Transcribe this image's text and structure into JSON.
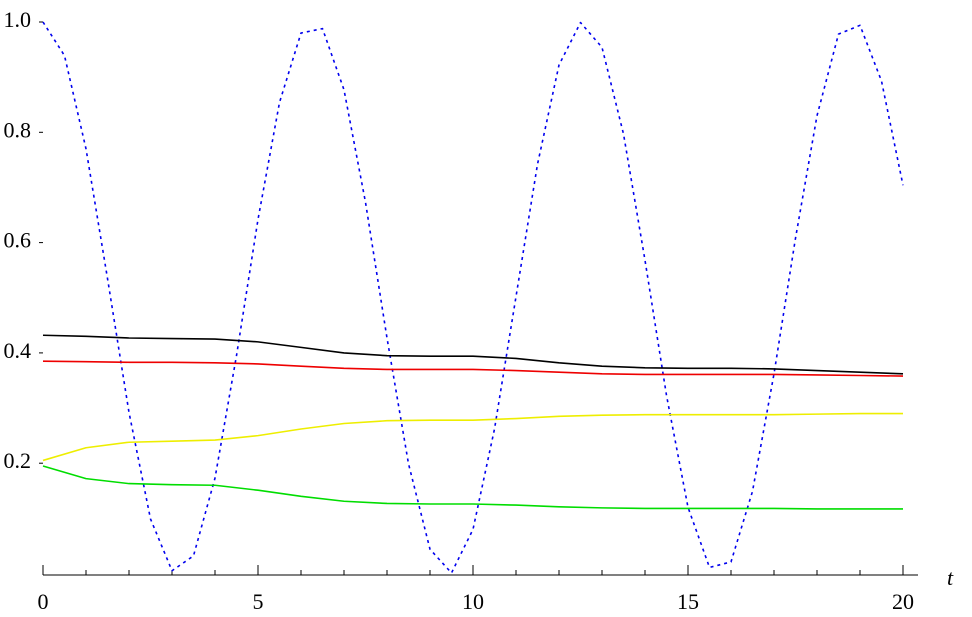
{
  "chart_data": {
    "type": "line",
    "xlabel": "t",
    "xlim": [
      0,
      20
    ],
    "xticks": [
      0,
      5,
      10,
      15,
      20
    ],
    "xminorticks": [
      0,
      1,
      2,
      3,
      4,
      5,
      6,
      7,
      8,
      9,
      10,
      11,
      12,
      13,
      14,
      15,
      16,
      17,
      18,
      19,
      20
    ],
    "ylim": [
      0,
      1
    ],
    "yticks": [
      0.2,
      0.4,
      0.6,
      0.8,
      {
        "value": 1,
        "label": "1.0"
      }
    ],
    "series": [
      {
        "color": "#0000ee",
        "style": "dotted",
        "x": [
          0,
          0.5,
          1,
          1.5,
          2,
          2.5,
          3,
          3.5,
          4,
          4.5,
          5,
          5.5,
          6,
          6.5,
          7,
          7.5,
          8,
          8.5,
          9,
          9.5,
          10,
          10.5,
          11,
          11.5,
          12,
          12.5,
          13,
          13.5,
          14,
          14.5,
          15,
          15.5,
          16,
          16.5,
          17,
          17.5,
          18,
          18.5,
          19,
          19.5,
          20
        ],
        "values": [
          1,
          0.939,
          0.77,
          0.535,
          0.292,
          0.099,
          0.005,
          0.032,
          0.173,
          0.395,
          0.642,
          0.854,
          0.98,
          0.988,
          0.877,
          0.673,
          0.427,
          0.199,
          0.044,
          0.001,
          0.08,
          0.262,
          0.502,
          0.742,
          0.922,
          0.999,
          0.954,
          0.797,
          0.568,
          0.323,
          0.12,
          0.011,
          0.021,
          0.149,
          0.362,
          0.608,
          0.83,
          0.978,
          0.994,
          0.893,
          0.704
        ]
      },
      {
        "color": "#000000",
        "style": "solid",
        "x": [
          0,
          1,
          2,
          3,
          4,
          5,
          6,
          7,
          8,
          9,
          10,
          11,
          12,
          13,
          14,
          15,
          16,
          17,
          18,
          19,
          20
        ],
        "values": [
          0.432,
          0.43,
          0.427,
          0.426,
          0.425,
          0.42,
          0.41,
          0.4,
          0.395,
          0.394,
          0.394,
          0.39,
          0.382,
          0.376,
          0.373,
          0.372,
          0.372,
          0.371,
          0.368,
          0.365,
          0.362
        ]
      },
      {
        "color": "#ee0000",
        "style": "solid",
        "x": [
          0,
          1,
          2,
          3,
          4,
          5,
          6,
          7,
          8,
          9,
          10,
          11,
          12,
          13,
          14,
          15,
          16,
          17,
          18,
          19,
          20
        ],
        "values": [
          0.385,
          0.384,
          0.383,
          0.383,
          0.382,
          0.38,
          0.376,
          0.372,
          0.37,
          0.37,
          0.37,
          0.368,
          0.365,
          0.362,
          0.361,
          0.361,
          0.361,
          0.361,
          0.36,
          0.359,
          0.358
        ]
      },
      {
        "color": "#eeee00",
        "style": "solid",
        "x": [
          0,
          1,
          2,
          3,
          4,
          5,
          6,
          7,
          8,
          9,
          10,
          11,
          12,
          13,
          14,
          15,
          16,
          17,
          18,
          19,
          20
        ],
        "values": [
          0.205,
          0.228,
          0.238,
          0.24,
          0.242,
          0.25,
          0.262,
          0.272,
          0.277,
          0.278,
          0.278,
          0.281,
          0.285,
          0.287,
          0.288,
          0.288,
          0.288,
          0.288,
          0.289,
          0.29,
          0.29
        ]
      },
      {
        "color": "#00dd00",
        "style": "solid",
        "x": [
          0,
          1,
          2,
          3,
          4,
          5,
          6,
          7,
          8,
          9,
          10,
          11,
          12,
          13,
          14,
          15,
          16,
          17,
          18,
          19,
          20
        ],
        "values": [
          0.195,
          0.172,
          0.163,
          0.161,
          0.16,
          0.151,
          0.14,
          0.131,
          0.127,
          0.126,
          0.126,
          0.124,
          0.121,
          0.119,
          0.118,
          0.118,
          0.118,
          0.118,
          0.117,
          0.117,
          0.117
        ]
      }
    ]
  }
}
